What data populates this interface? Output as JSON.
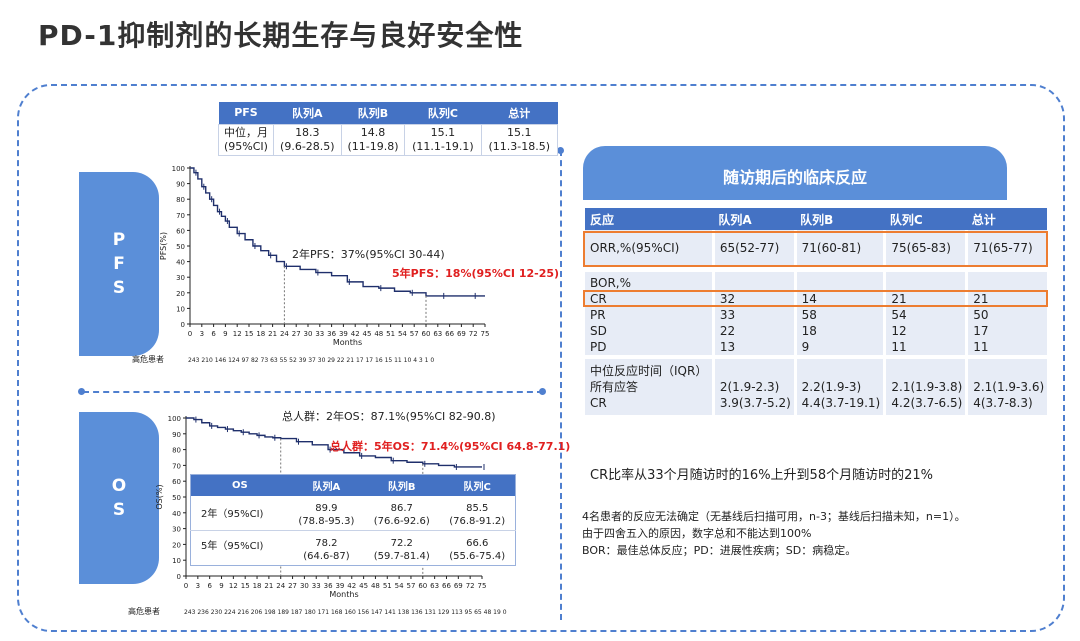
{
  "title": "PD-1抑制剂的长期生存与良好安全性",
  "sections": {
    "pfs_label": [
      "P",
      "F",
      "S"
    ],
    "os_label": [
      "O",
      "S"
    ]
  },
  "pfs_table": {
    "headers": [
      "PFS",
      "队列A",
      "队列B",
      "队列C",
      "总计"
    ],
    "row_label": [
      "中位，月",
      "(95%CI)"
    ],
    "cells": [
      [
        "18.3",
        "(9.6-28.5)"
      ],
      [
        "14.8",
        "(11-19.8)"
      ],
      [
        "15.1",
        "(11.1-19.1)"
      ],
      [
        "15.1",
        "(11.3-18.5)"
      ]
    ]
  },
  "pfs_chart": {
    "ylabel": "PFS(%)",
    "xlabel": "Months",
    "risk_label": "高危患者",
    "risk_counts": "243 210 146 124 97  82  73  63  55  52  39  37  30  29  22  21  17  17  16  15  11  10   4   3   1   0",
    "note_2y": "2年PFS：37%(95%CI 30-44)",
    "note_5y": "5年PFS：18%(95%CI 12-25)"
  },
  "os_chart": {
    "ylabel": "OS(%)",
    "xlabel": "Months",
    "risk_label": "高危患者",
    "risk_counts": "243 236 230 224 216 206 198 189 187 180 171 168 160 156 147 141 138 136 131 129 113  95  65  48  19   0",
    "note_2y": "总人群：2年OS：87.1%(95%CI 82-90.8)",
    "note_5y": "总人群：5年OS：71.4%(95%CI 64.8-77.1)"
  },
  "os_table": {
    "headers": [
      "OS",
      "队列A",
      "队列B",
      "队列C"
    ],
    "rows": [
      {
        "label": "2年（95%CI)",
        "values": [
          "89.9",
          "86.7",
          "85.5"
        ],
        "ci": [
          "(78.8-95.3)",
          "(76.6-92.6)",
          "(76.8-91.2)"
        ]
      },
      {
        "label": "5年（95%CI)",
        "values": [
          "78.2",
          "72.2",
          "66.6"
        ],
        "ci": [
          "(64.6-87)",
          "(59.7-81.4)",
          "(55.6-75.4)"
        ]
      }
    ]
  },
  "followup": {
    "header": "随访期后的临床反应",
    "columns": [
      "反应",
      "队列A",
      "队列B",
      "队列C",
      "总计"
    ],
    "orr": [
      "ORR,%(95%CI)",
      "65(52-77)",
      "71(60-81)",
      "75(65-83)",
      "71(65-77)"
    ],
    "bor_label": "BOR,%",
    "bor_rows": [
      [
        "CR",
        "32",
        "14",
        "21",
        "21"
      ],
      [
        "PR",
        "33",
        "58",
        "54",
        "50"
      ],
      [
        "SD",
        "22",
        "18",
        "12",
        "17"
      ],
      [
        "PD",
        "13",
        "9",
        "11",
        "11"
      ]
    ],
    "median_label": "中位反应时间（IQR）",
    "median_rows": [
      [
        "所有应答",
        "2(1.9-2.3)",
        "2.2(1.9-3)",
        "2.1(1.9-3.8)",
        "2.1(1.9-3.6)"
      ],
      [
        "CR",
        "3.9(3.7-5.2)",
        "4.4(3.7-19.1)",
        "4.2(3.7-6.5)",
        "4(3.7-8.3)"
      ]
    ]
  },
  "cr_note": "CR比率从33个月随访时的16%上升到58个月随访时的21%",
  "footnotes": [
    "4名患者的反应无法确定（无基线后扫描可用，n-3；基线后扫描未知，n=1）。",
    "由于四舍五入的原因，数字总和不能达到100%",
    "BOR：最佳总体反应；PD：进展性疾病；SD：病稳定。"
  ],
  "colors": {
    "accent": "#4472c4",
    "pill": "#5b8fd9",
    "highlight": "#ed7d31",
    "red_note": "#e02020",
    "curve": "#1f2f6b"
  }
}
